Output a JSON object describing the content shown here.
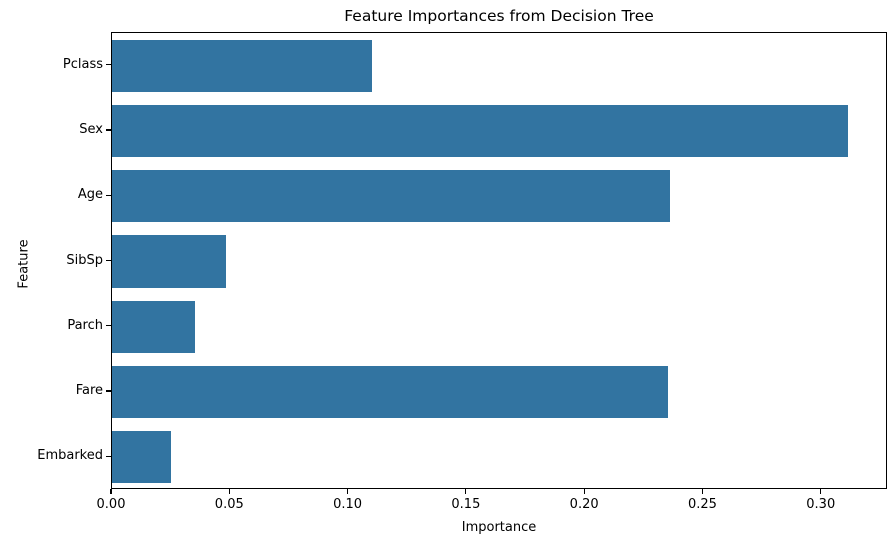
{
  "chart_data": {
    "type": "bar",
    "orientation": "horizontal",
    "title": "Feature Importances from Decision Tree",
    "xlabel": "Importance",
    "ylabel": "Feature",
    "categories": [
      "Pclass",
      "Sex",
      "Age",
      "SibSp",
      "Parch",
      "Fare",
      "Embarked"
    ],
    "values": [
      0.11,
      0.311,
      0.236,
      0.048,
      0.035,
      0.235,
      0.025
    ],
    "xlim": [
      0,
      0.328
    ],
    "xticks": [
      0.0,
      0.05,
      0.1,
      0.15,
      0.2,
      0.25,
      0.3
    ],
    "xtick_labels": [
      "0.00",
      "0.05",
      "0.10",
      "0.15",
      "0.20",
      "0.25",
      "0.30"
    ],
    "bar_color": "#3274a1",
    "spine_color": "#000000",
    "text_color": "#000000",
    "grid": false,
    "legend": null,
    "bar_rel_height": 0.8
  }
}
